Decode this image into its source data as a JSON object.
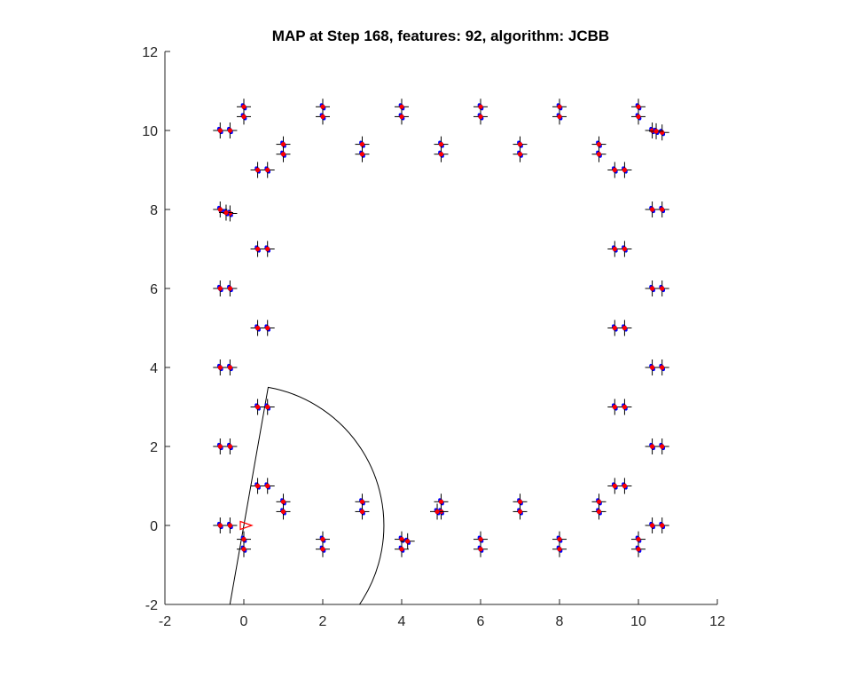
{
  "chart_data": {
    "type": "scatter",
    "title": "MAP at Step 168, features: 92, algorithm: JCBB",
    "xlabel": "",
    "ylabel": "",
    "xlim": [
      -2,
      12
    ],
    "ylim": [
      -2,
      12
    ],
    "xticks": [
      "-2",
      "0",
      "2",
      "4",
      "6",
      "8",
      "10",
      "12"
    ],
    "yticks": [
      "-2",
      "0",
      "2",
      "4",
      "6",
      "8",
      "10",
      "12"
    ],
    "grid": false,
    "colors": {
      "landmark_marker": "#ff0000",
      "covariance_ellipse": "#0000ff",
      "cross": "#000000",
      "robot": "#ff0000",
      "sensor_range": "#000000"
    },
    "robot_pose": {
      "x": 0,
      "y": 0,
      "heading_deg": 0
    },
    "sensor_fov": {
      "center": [
        0,
        0
      ],
      "radius": 3.55,
      "start_angle_deg": -100,
      "end_angle_deg": 80
    },
    "features": [
      [
        -0.6,
        10
      ],
      [
        -0.35,
        10
      ],
      [
        0,
        10.6
      ],
      [
        0,
        10.35
      ],
      [
        0.35,
        9
      ],
      [
        0.6,
        9
      ],
      [
        1,
        9.65
      ],
      [
        1,
        9.4
      ],
      [
        2,
        10.6
      ],
      [
        2,
        10.35
      ],
      [
        3,
        9.65
      ],
      [
        3,
        9.4
      ],
      [
        4,
        10.6
      ],
      [
        4,
        10.35
      ],
      [
        5,
        9.65
      ],
      [
        5,
        9.4
      ],
      [
        6,
        10.6
      ],
      [
        6,
        10.35
      ],
      [
        7,
        9.65
      ],
      [
        7,
        9.4
      ],
      [
        8,
        10.6
      ],
      [
        8,
        10.35
      ],
      [
        9,
        9.65
      ],
      [
        9,
        9.4
      ],
      [
        10,
        10.6
      ],
      [
        10,
        10.35
      ],
      [
        10.35,
        10
      ],
      [
        10.6,
        9.95
      ],
      [
        9.4,
        9
      ],
      [
        9.65,
        9
      ],
      [
        -0.6,
        8
      ],
      [
        -0.35,
        7.9
      ],
      [
        0.35,
        7
      ],
      [
        0.6,
        7
      ],
      [
        10.35,
        8
      ],
      [
        10.6,
        8
      ],
      [
        9.4,
        7
      ],
      [
        9.65,
        7
      ],
      [
        -0.6,
        6
      ],
      [
        -0.35,
        6
      ],
      [
        0.35,
        5
      ],
      [
        0.6,
        5
      ],
      [
        10.35,
        6
      ],
      [
        10.6,
        6
      ],
      [
        9.4,
        5
      ],
      [
        9.65,
        5
      ],
      [
        -0.6,
        4
      ],
      [
        -0.35,
        4
      ],
      [
        0.35,
        3
      ],
      [
        0.6,
        3
      ],
      [
        10.35,
        4
      ],
      [
        10.6,
        4
      ],
      [
        9.4,
        3
      ],
      [
        9.65,
        3
      ],
      [
        -0.6,
        2
      ],
      [
        -0.35,
        2
      ],
      [
        0.35,
        1
      ],
      [
        0.6,
        1
      ],
      [
        10.35,
        2
      ],
      [
        10.6,
        2
      ],
      [
        9.4,
        1
      ],
      [
        9.65,
        1
      ],
      [
        -0.6,
        0
      ],
      [
        -0.35,
        0
      ],
      [
        0,
        -0.35
      ],
      [
        0,
        -0.6
      ],
      [
        1,
        0.6
      ],
      [
        1,
        0.35
      ],
      [
        2,
        -0.35
      ],
      [
        2,
        -0.6
      ],
      [
        3,
        0.6
      ],
      [
        3,
        0.35
      ],
      [
        4,
        -0.35
      ],
      [
        4,
        -0.6
      ],
      [
        5,
        0.6
      ],
      [
        5,
        0.35
      ],
      [
        6,
        -0.35
      ],
      [
        6,
        -0.6
      ],
      [
        7,
        0.6
      ],
      [
        7,
        0.35
      ],
      [
        8,
        -0.35
      ],
      [
        8,
        -0.6
      ],
      [
        9,
        0.6
      ],
      [
        9,
        0.35
      ],
      [
        10,
        -0.35
      ],
      [
        10,
        -0.6
      ],
      [
        10.35,
        0
      ],
      [
        10.6,
        0
      ],
      [
        4.15,
        -0.4
      ],
      [
        4.9,
        0.35
      ],
      [
        -0.45,
        7.92
      ],
      [
        10.45,
        9.98
      ]
    ]
  }
}
